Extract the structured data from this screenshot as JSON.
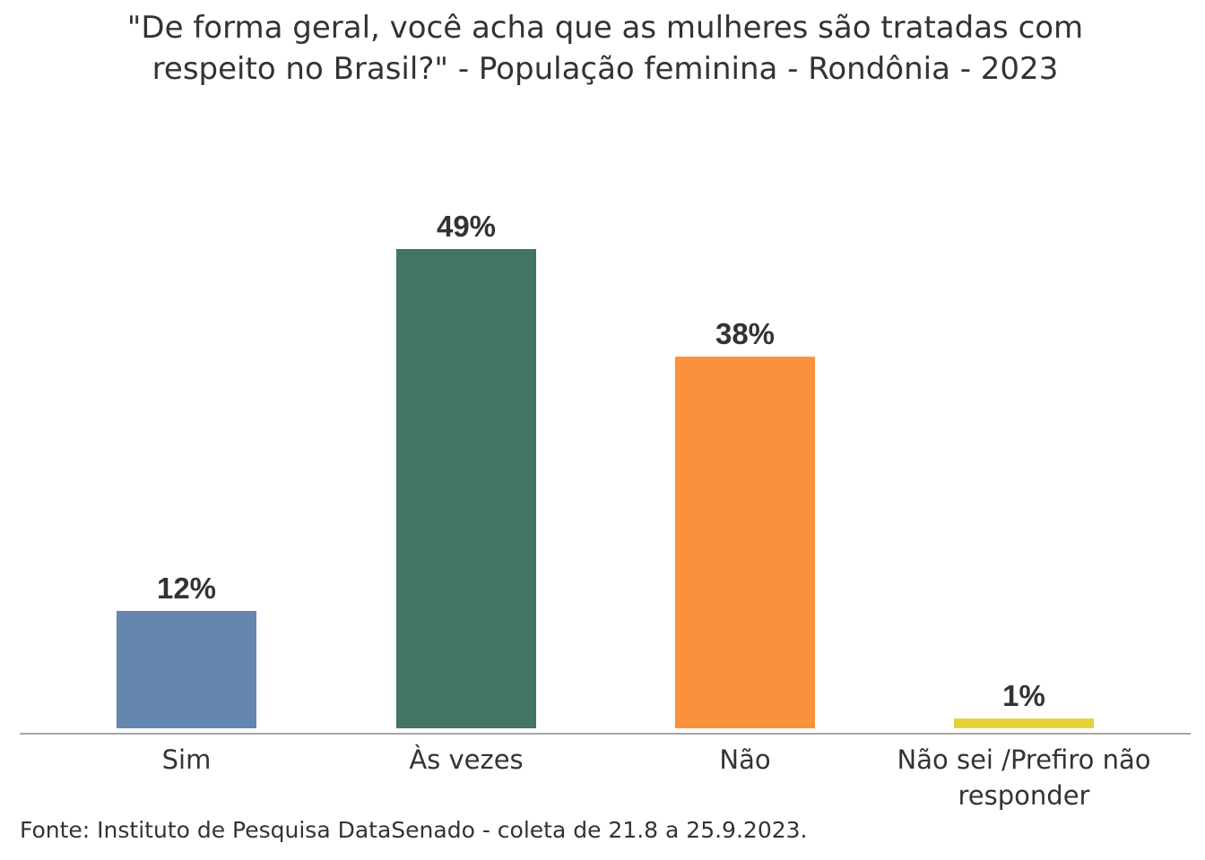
{
  "chart_data": {
    "type": "bar",
    "title_lines": [
      "\"De forma geral, você acha que as mulheres são tratadas com",
      "respeito no Brasil?\" - População feminina - Rondônia - 2023"
    ],
    "categories": [
      "Sim",
      "Às vezes",
      "Não",
      "Não sei /Prefiro não responder"
    ],
    "category_lines": [
      [
        "Sim"
      ],
      [
        "Às vezes"
      ],
      [
        "Não"
      ],
      [
        "Não sei /Prefiro não",
        "responder"
      ]
    ],
    "values": [
      12,
      49,
      38,
      1
    ],
    "data_labels": [
      "12%",
      "49%",
      "38%",
      "1%"
    ],
    "colors": [
      "#6586ae",
      "#447463",
      "#fa913c",
      "#e3d239"
    ],
    "xlabel": "",
    "ylabel": "",
    "ylim": [
      0,
      49
    ],
    "grid": false,
    "legend": "none"
  },
  "source": "Fonte: Instituto de Pesquisa DataSenado - coleta de 21.8 a 25.9.2023."
}
